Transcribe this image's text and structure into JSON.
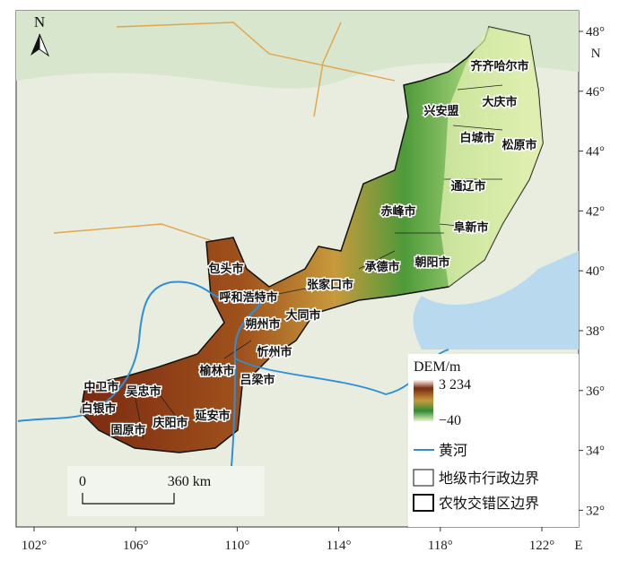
{
  "north_arrow": "N",
  "cities": [
    "齐齐哈尔市",
    "大庆市",
    "兴安盟",
    "白城市",
    "松原市",
    "通辽市",
    "赤峰市",
    "阜新市",
    "承德市",
    "朝阳市",
    "包头市",
    "张家口市",
    "呼和浩特市",
    "大同市",
    "朔州市",
    "忻州市",
    "榆林市",
    "吕梁市",
    "中卫市",
    "吴忠市",
    "白银市",
    "延安市",
    "庆阳市",
    "固原市"
  ],
  "legend": {
    "title": "DEM/m",
    "max_label": "3 234",
    "min_label": "−40",
    "items": [
      "黄河",
      "地级市行政边界",
      "农牧交错区边界"
    ]
  },
  "scale_bar": [
    "0",
    "360 km"
  ],
  "axes": {
    "lat_letter": "N",
    "lon_letter": "E",
    "lon_ticks": [
      {
        "value": 102,
        "label": "102°"
      },
      {
        "value": 106,
        "label": "106°"
      },
      {
        "value": 110,
        "label": "110°"
      },
      {
        "value": 114,
        "label": "114°"
      },
      {
        "value": 118,
        "label": "118°"
      },
      {
        "value": 122,
        "label": "122°"
      }
    ],
    "lat_ticks": [
      {
        "value": 48,
        "label": "48°"
      },
      {
        "value": 46,
        "label": "46°"
      },
      {
        "value": 44,
        "label": "44°"
      },
      {
        "value": 42,
        "label": "42°"
      },
      {
        "value": 40,
        "label": "40°"
      },
      {
        "value": 38,
        "label": "38°"
      },
      {
        "value": 36,
        "label": "36°"
      },
      {
        "value": 34,
        "label": "34°"
      },
      {
        "value": 32,
        "label": "32°"
      }
    ]
  }
}
